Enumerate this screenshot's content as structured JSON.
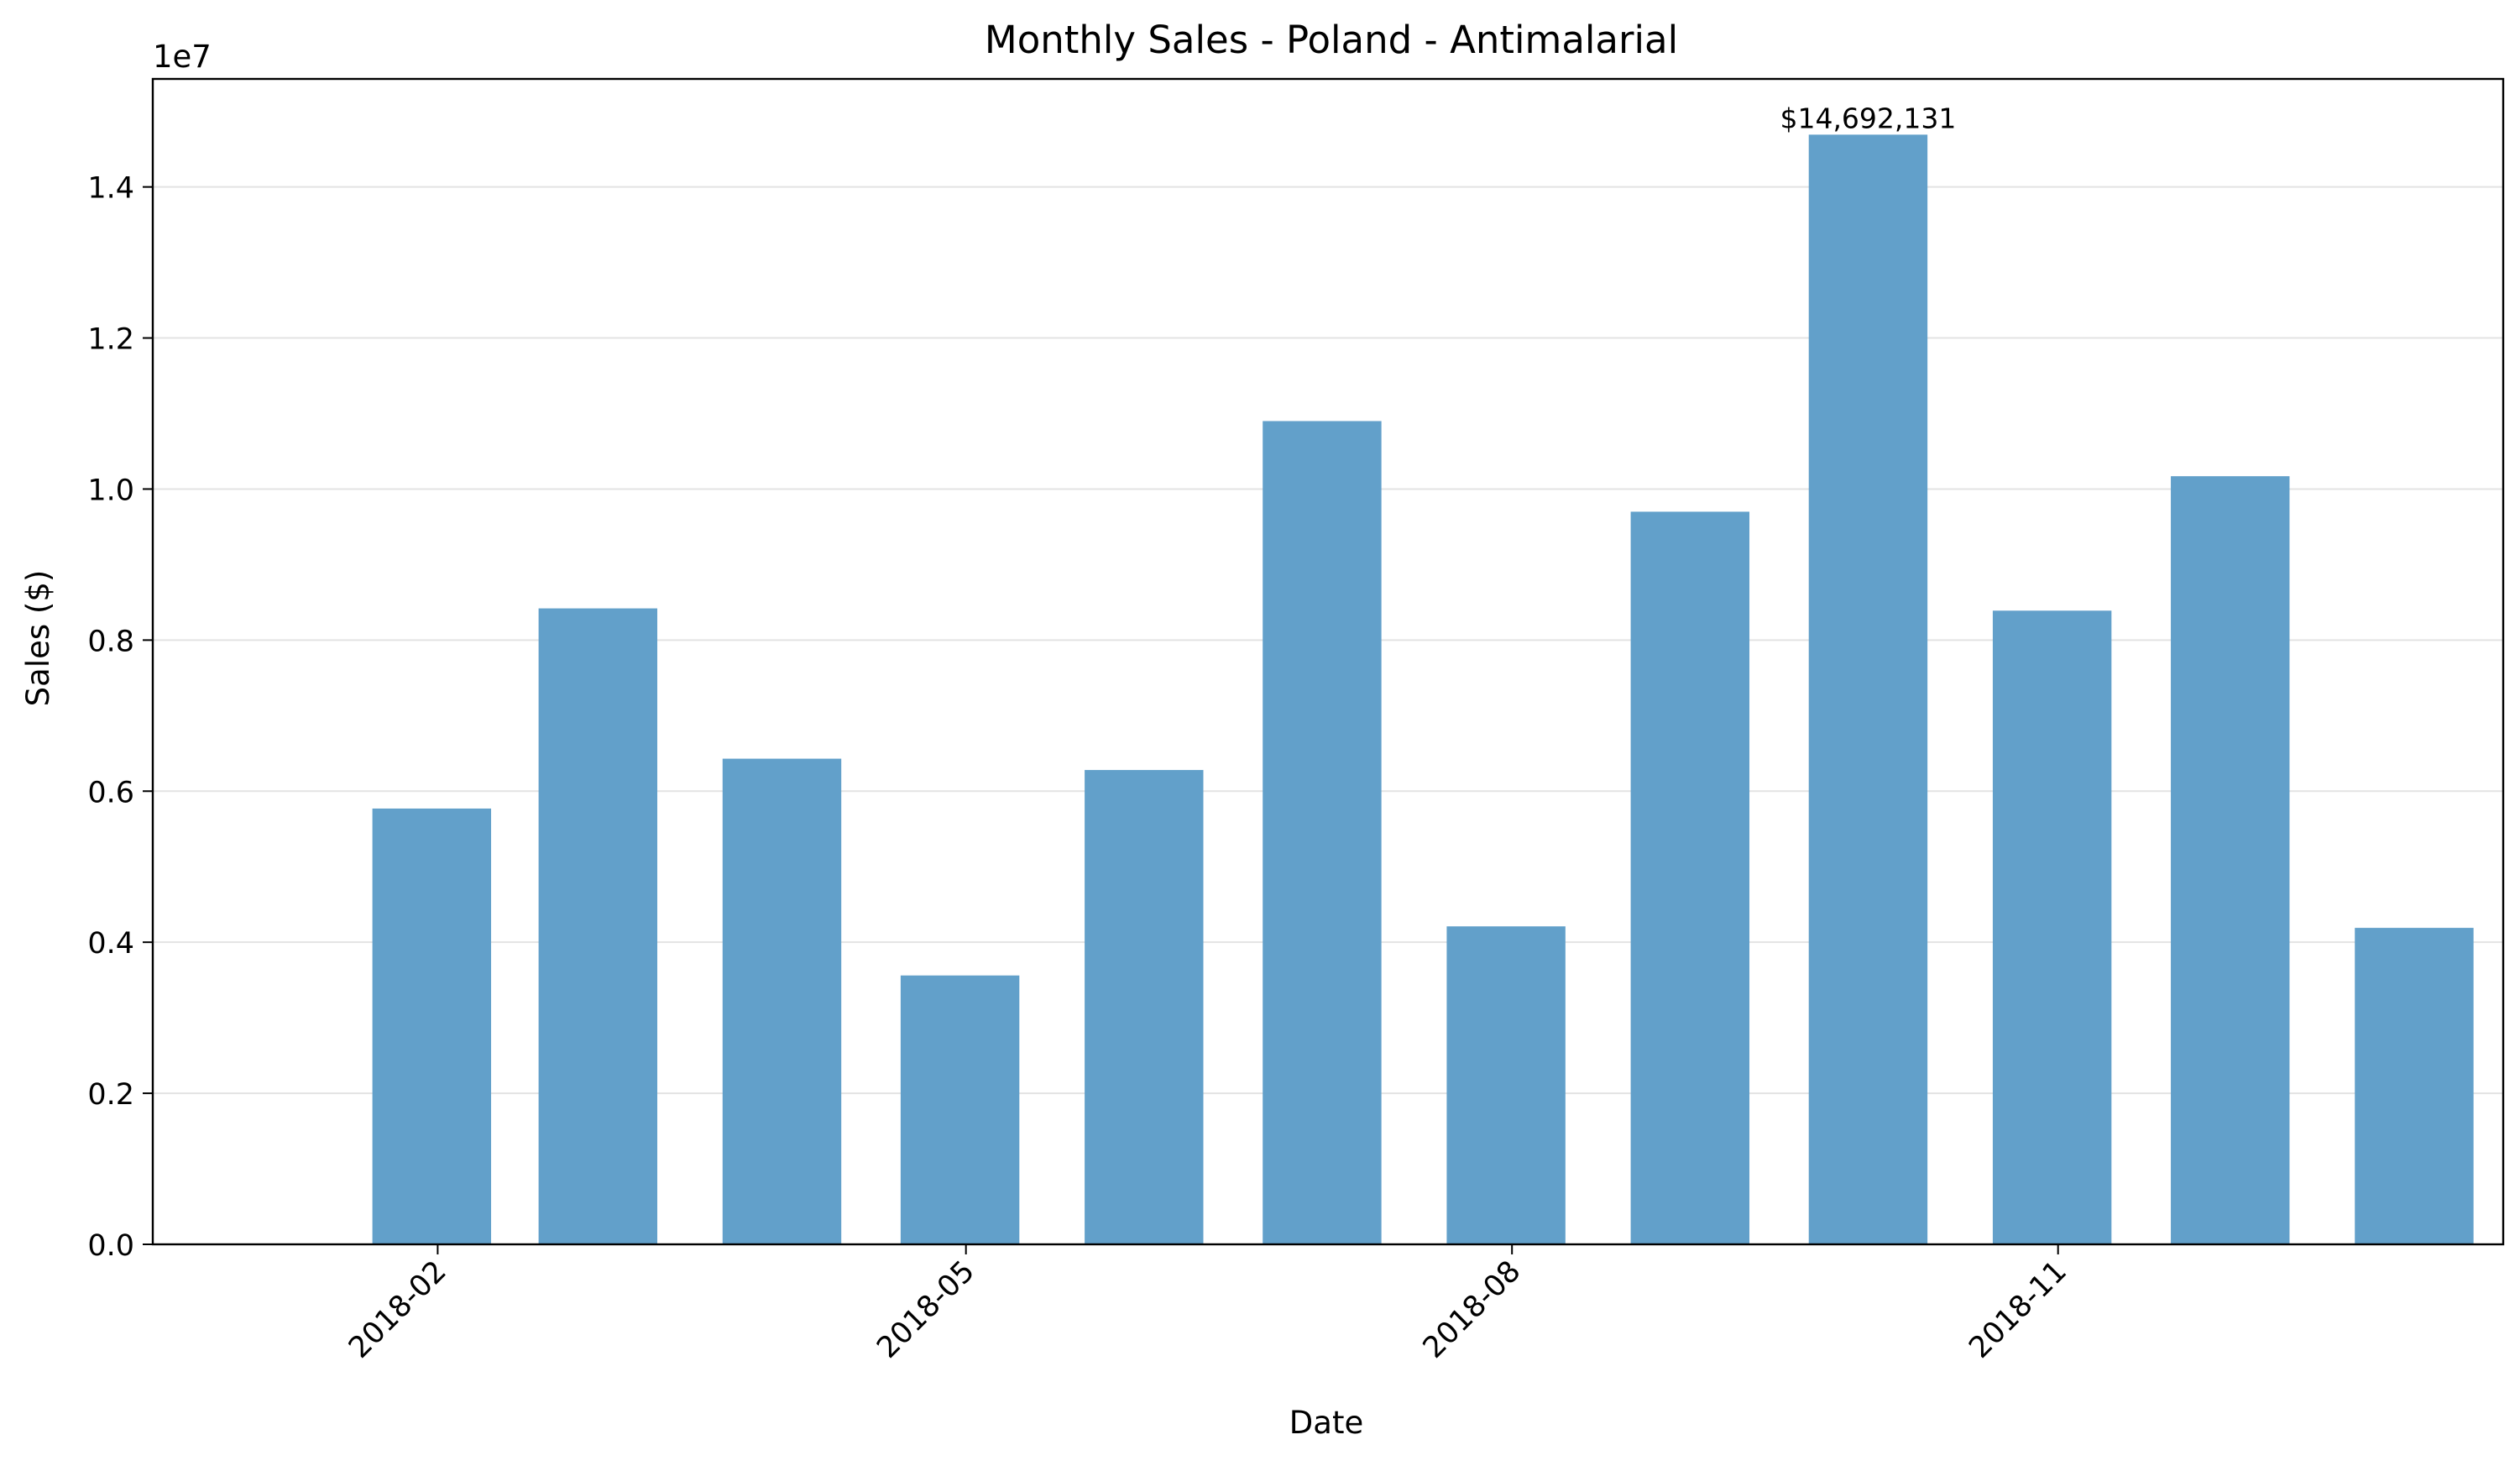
{
  "chart_data": {
    "type": "bar",
    "title": "Monthly Sales - Poland - Antimalarial",
    "xlabel": "Date",
    "ylabel": "Sales ($)",
    "y_scale_label": "1e7",
    "categories": [
      "2018-01-31",
      "2018-02-28",
      "2018-03-31",
      "2018-04-30",
      "2018-05-31",
      "2018-06-30",
      "2018-07-31",
      "2018-08-31",
      "2018-09-30",
      "2018-10-31",
      "2018-11-30",
      "2018-12-31"
    ],
    "values": [
      5770000,
      8420000,
      6430000,
      3560000,
      6280000,
      10900000,
      4210000,
      9700000,
      14692131,
      8390000,
      10170000,
      4190000
    ],
    "x_ticks": [
      "2018-02",
      "2018-05",
      "2018-08",
      "2018-11"
    ],
    "y_ticks": [
      "0.0",
      "0.2",
      "0.4",
      "0.6",
      "0.8",
      "1.0",
      "1.2",
      "1.4"
    ],
    "ylim": [
      0,
      15430000
    ],
    "annotation": {
      "category": "2018-09-30",
      "text": "$14,692,131"
    },
    "bar_color": "#62a0ca",
    "grid": "y",
    "legend": "none"
  }
}
